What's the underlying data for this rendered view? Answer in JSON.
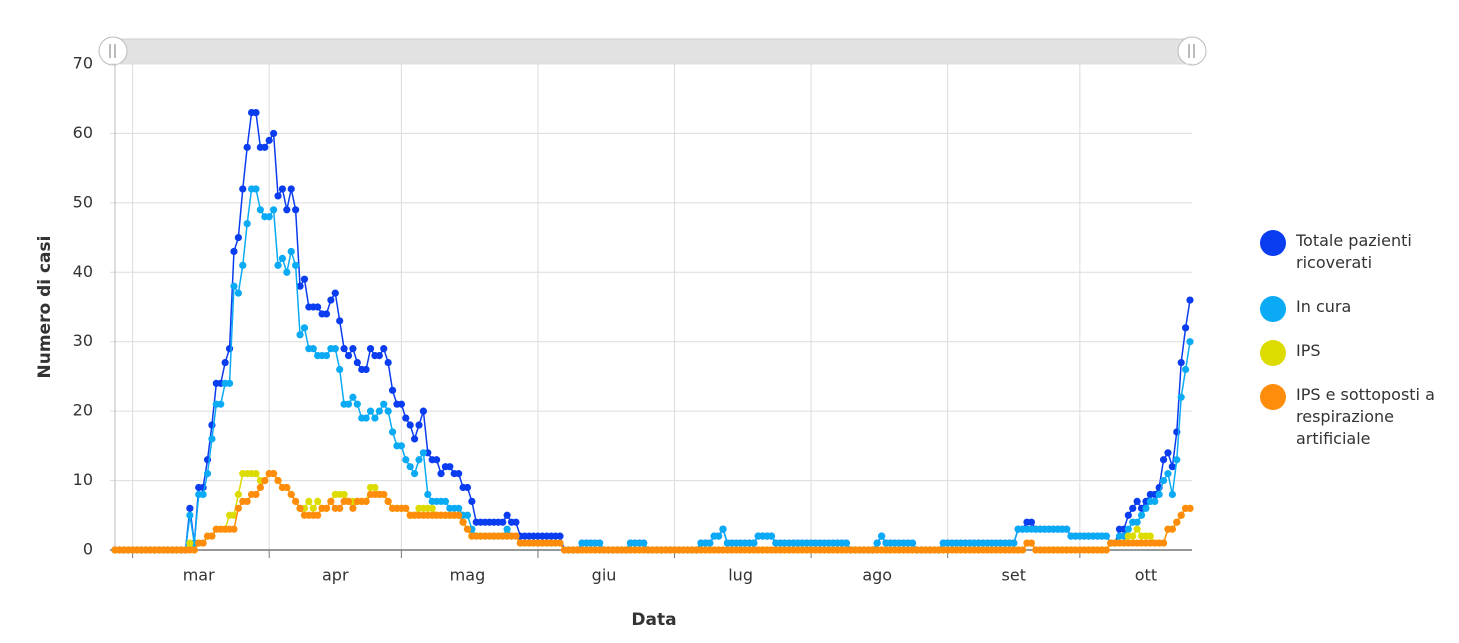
{
  "chart_data": {
    "type": "line",
    "x_label": "Data",
    "y_label": "Numero di casi",
    "ylim": [
      0,
      70
    ],
    "yticks": [
      0,
      10,
      20,
      30,
      40,
      50,
      60,
      70
    ],
    "grid": true,
    "legend": "right",
    "categories": [
      null,
      null,
      null,
      null,
      null,
      null,
      null,
      null,
      null,
      null,
      null,
      null,
      null,
      null,
      null,
      null,
      null,
      null,
      null,
      "mar",
      null,
      null,
      null,
      null,
      null,
      null,
      null,
      null,
      null,
      null,
      null,
      null,
      null,
      null,
      null,
      null,
      null,
      null,
      null,
      null,
      null,
      null,
      null,
      null,
      null,
      null,
      null,
      null,
      null,
      null,
      "apr",
      null,
      null,
      null,
      null,
      null,
      null,
      null,
      null,
      null,
      null,
      null,
      null,
      null,
      null,
      null,
      null,
      null,
      null,
      null,
      null,
      null,
      null,
      null,
      null,
      null,
      null,
      null,
      null,
      null,
      "mag",
      null,
      null,
      null,
      null,
      null,
      null,
      null,
      null,
      null,
      null,
      null,
      null,
      null,
      null,
      null,
      null,
      null,
      null,
      null,
      null,
      null,
      null,
      null,
      null,
      null,
      null,
      null,
      null,
      null,
      null,
      "giu",
      null,
      null,
      null,
      null,
      null,
      null,
      null,
      null,
      null,
      null,
      null,
      null,
      null,
      null,
      null,
      null,
      null,
      null,
      null,
      null,
      null,
      null,
      null,
      null,
      null,
      null,
      null,
      null,
      null,
      null,
      "lug",
      null,
      null,
      null,
      null,
      null,
      null,
      null,
      null,
      null,
      null,
      null,
      null,
      null,
      null,
      null,
      null,
      null,
      null,
      null,
      null,
      null,
      null,
      null,
      null,
      null,
      null,
      null,
      null,
      null,
      null,
      "ago",
      null,
      null,
      null,
      null,
      null,
      null,
      null,
      null,
      null,
      null,
      null,
      null,
      null,
      null,
      null,
      null,
      null,
      null,
      null,
      null,
      null,
      null,
      null,
      null,
      null,
      null,
      null,
      null,
      null,
      null,
      "set",
      null,
      null,
      null,
      null,
      null,
      null,
      null,
      null,
      null,
      null,
      null,
      null,
      null,
      null,
      null,
      null,
      null,
      null,
      null,
      null,
      null,
      null,
      null,
      null,
      null,
      null,
      null,
      null,
      null,
      "ott",
      null,
      null,
      null,
      null,
      null,
      null,
      null,
      null,
      null,
      null
    ],
    "series": [
      {
        "name": "Totale pazienti ricoverati",
        "color": "#0a3cf0",
        "values": [
          0,
          0,
          0,
          0,
          0,
          0,
          0,
          0,
          0,
          0,
          0,
          0,
          0,
          0,
          0,
          0,
          0,
          6,
          1,
          9,
          9,
          13,
          18,
          24,
          24,
          27,
          29,
          43,
          45,
          52,
          58,
          63,
          63,
          58,
          58,
          59,
          60,
          51,
          52,
          49,
          52,
          49,
          38,
          39,
          35,
          35,
          35,
          34,
          34,
          36,
          37,
          33,
          29,
          28,
          29,
          27,
          26,
          26,
          29,
          28,
          28,
          29,
          27,
          23,
          21,
          21,
          19,
          18,
          16,
          18,
          20,
          14,
          13,
          13,
          11,
          12,
          12,
          11,
          11,
          9,
          9,
          7,
          4,
          4,
          4,
          4,
          4,
          4,
          4,
          5,
          4,
          4,
          2,
          2,
          2,
          2,
          2,
          2,
          2,
          2,
          2,
          2,
          0,
          0,
          0,
          0,
          1,
          1,
          1,
          1,
          1,
          0,
          0,
          0,
          0,
          0,
          0,
          1,
          1,
          1,
          1,
          0,
          0,
          0,
          0,
          0,
          0,
          0,
          0,
          0,
          0,
          0,
          0,
          1,
          1,
          1,
          2,
          2,
          3,
          1,
          1,
          1,
          1,
          1,
          1,
          1,
          2,
          2,
          2,
          2,
          1,
          1,
          1,
          1,
          1,
          1,
          1,
          1,
          1,
          1,
          1,
          1,
          1,
          1,
          1,
          1,
          1,
          0,
          0,
          0,
          0,
          0,
          0,
          1,
          2,
          1,
          1,
          1,
          1,
          1,
          1,
          1,
          0,
          0,
          0,
          0,
          0,
          0,
          1,
          1,
          1,
          1,
          1,
          1,
          1,
          1,
          1,
          1,
          1,
          1,
          1,
          1,
          1,
          1,
          1,
          3,
          3,
          4,
          4,
          3,
          3,
          3,
          3,
          3,
          3,
          3,
          3,
          2,
          2,
          2,
          2,
          2,
          2,
          2,
          2,
          2,
          1,
          1,
          3,
          3,
          5,
          6,
          7,
          6,
          7,
          8,
          8,
          9,
          13,
          14,
          12,
          17,
          27,
          32,
          36
        ]
      },
      {
        "name": "In cura",
        "color": "#0aaaf5",
        "values": [
          0,
          0,
          0,
          0,
          0,
          0,
          0,
          0,
          0,
          0,
          0,
          0,
          0,
          0,
          0,
          0,
          0,
          5,
          1,
          8,
          8,
          11,
          16,
          21,
          21,
          24,
          24,
          38,
          37,
          41,
          47,
          52,
          52,
          49,
          48,
          48,
          49,
          41,
          42,
          40,
          43,
          41,
          31,
          32,
          29,
          29,
          28,
          28,
          28,
          29,
          29,
          26,
          21,
          21,
          22,
          21,
          19,
          19,
          20,
          19,
          20,
          21,
          20,
          17,
          15,
          15,
          13,
          12,
          11,
          13,
          14,
          8,
          7,
          7,
          7,
          7,
          6,
          6,
          6,
          5,
          5,
          3,
          2,
          2,
          2,
          2,
          2,
          2,
          2,
          3,
          2,
          2,
          1,
          1,
          1,
          1,
          1,
          1,
          1,
          1,
          1,
          1,
          0,
          0,
          0,
          0,
          1,
          1,
          1,
          1,
          1,
          0,
          0,
          0,
          0,
          0,
          0,
          1,
          1,
          1,
          1,
          0,
          0,
          0,
          0,
          0,
          0,
          0,
          0,
          0,
          0,
          0,
          0,
          1,
          1,
          1,
          2,
          2,
          3,
          1,
          1,
          1,
          1,
          1,
          1,
          1,
          2,
          2,
          2,
          2,
          1,
          1,
          1,
          1,
          1,
          1,
          1,
          1,
          1,
          1,
          1,
          1,
          1,
          1,
          1,
          1,
          1,
          0,
          0,
          0,
          0,
          0,
          0,
          1,
          2,
          1,
          1,
          1,
          1,
          1,
          1,
          1,
          0,
          0,
          0,
          0,
          0,
          0,
          1,
          1,
          1,
          1,
          1,
          1,
          1,
          1,
          1,
          1,
          1,
          1,
          1,
          1,
          1,
          1,
          1,
          3,
          3,
          3,
          3,
          3,
          3,
          3,
          3,
          3,
          3,
          3,
          3,
          2,
          2,
          2,
          2,
          2,
          2,
          2,
          2,
          2,
          1,
          1,
          2,
          2,
          3,
          4,
          4,
          5,
          6,
          7,
          7,
          8,
          10,
          11,
          8,
          13,
          22,
          26,
          30
        ]
      },
      {
        "name": "IPS",
        "color": "#dcdc00",
        "values": [
          0,
          0,
          0,
          0,
          0,
          0,
          0,
          0,
          0,
          0,
          0,
          0,
          0,
          0,
          0,
          0,
          0,
          1,
          0,
          1,
          1,
          2,
          2,
          3,
          3,
          3,
          5,
          5,
          8,
          11,
          11,
          11,
          11,
          10,
          10,
          11,
          11,
          10,
          9,
          9,
          8,
          7,
          6,
          6,
          7,
          6,
          7,
          6,
          6,
          7,
          8,
          8,
          8,
          7,
          7,
          7,
          7,
          7,
          9,
          9,
          8,
          8,
          7,
          6,
          6,
          6,
          6,
          5,
          5,
          6,
          6,
          6,
          6,
          5,
          5,
          5,
          5,
          5,
          5,
          4,
          3,
          2,
          2,
          2,
          2,
          2,
          2,
          2,
          2,
          2,
          2,
          2,
          1,
          1,
          1,
          1,
          1,
          1,
          1,
          1,
          1,
          1,
          0,
          0,
          0,
          0,
          0,
          0,
          0,
          0,
          0,
          0,
          0,
          0,
          0,
          0,
          0,
          0,
          0,
          0,
          0,
          0,
          0,
          0,
          0,
          0,
          0,
          0,
          0,
          0,
          0,
          0,
          0,
          0,
          0,
          0,
          0,
          0,
          0,
          0,
          0,
          0,
          0,
          0,
          0,
          0,
          0,
          0,
          0,
          0,
          0,
          0,
          0,
          0,
          0,
          0,
          0,
          0,
          0,
          0,
          0,
          0,
          0,
          0,
          0,
          0,
          0,
          0,
          0,
          0,
          0,
          0,
          0,
          0,
          0,
          0,
          0,
          0,
          0,
          0,
          0,
          0,
          0,
          0,
          0,
          0,
          0,
          0,
          0,
          0,
          0,
          0,
          0,
          0,
          0,
          0,
          0,
          0,
          0,
          0,
          0,
          0,
          0,
          0,
          0,
          0,
          0,
          1,
          1,
          0,
          0,
          0,
          0,
          0,
          0,
          0,
          0,
          0,
          0,
          0,
          0,
          0,
          0,
          0,
          0,
          0,
          1,
          1,
          1,
          1,
          2,
          2,
          3,
          2,
          2,
          2,
          1,
          1,
          1,
          3,
          3,
          4,
          5,
          6,
          6
        ]
      },
      {
        "name": "IPS e sottoposti a respirazione artificiale",
        "color": "#ff8c0a",
        "values": [
          0,
          0,
          0,
          0,
          0,
          0,
          0,
          0,
          0,
          0,
          0,
          0,
          0,
          0,
          0,
          0,
          0,
          0,
          0,
          1,
          1,
          2,
          2,
          3,
          3,
          3,
          3,
          3,
          6,
          7,
          7,
          8,
          8,
          9,
          10,
          11,
          11,
          10,
          9,
          9,
          8,
          7,
          6,
          5,
          5,
          5,
          5,
          6,
          6,
          7,
          6,
          6,
          7,
          7,
          6,
          7,
          7,
          7,
          8,
          8,
          8,
          8,
          7,
          6,
          6,
          6,
          6,
          5,
          5,
          5,
          5,
          5,
          5,
          5,
          5,
          5,
          5,
          5,
          5,
          4,
          3,
          2,
          2,
          2,
          2,
          2,
          2,
          2,
          2,
          2,
          2,
          2,
          1,
          1,
          1,
          1,
          1,
          1,
          1,
          1,
          1,
          1,
          0,
          0,
          0,
          0,
          0,
          0,
          0,
          0,
          0,
          0,
          0,
          0,
          0,
          0,
          0,
          0,
          0,
          0,
          0,
          0,
          0,
          0,
          0,
          0,
          0,
          0,
          0,
          0,
          0,
          0,
          0,
          0,
          0,
          0,
          0,
          0,
          0,
          0,
          0,
          0,
          0,
          0,
          0,
          0,
          0,
          0,
          0,
          0,
          0,
          0,
          0,
          0,
          0,
          0,
          0,
          0,
          0,
          0,
          0,
          0,
          0,
          0,
          0,
          0,
          0,
          0,
          0,
          0,
          0,
          0,
          0,
          0,
          0,
          0,
          0,
          0,
          0,
          0,
          0,
          0,
          0,
          0,
          0,
          0,
          0,
          0,
          0,
          0,
          0,
          0,
          0,
          0,
          0,
          0,
          0,
          0,
          0,
          0,
          0,
          0,
          0,
          0,
          0,
          0,
          0,
          1,
          1,
          0,
          0,
          0,
          0,
          0,
          0,
          0,
          0,
          0,
          0,
          0,
          0,
          0,
          0,
          0,
          0,
          0,
          1,
          1,
          1,
          1,
          1,
          1,
          1,
          1,
          1,
          1,
          1,
          1,
          1,
          3,
          3,
          4,
          5,
          6,
          6
        ]
      }
    ]
  }
}
